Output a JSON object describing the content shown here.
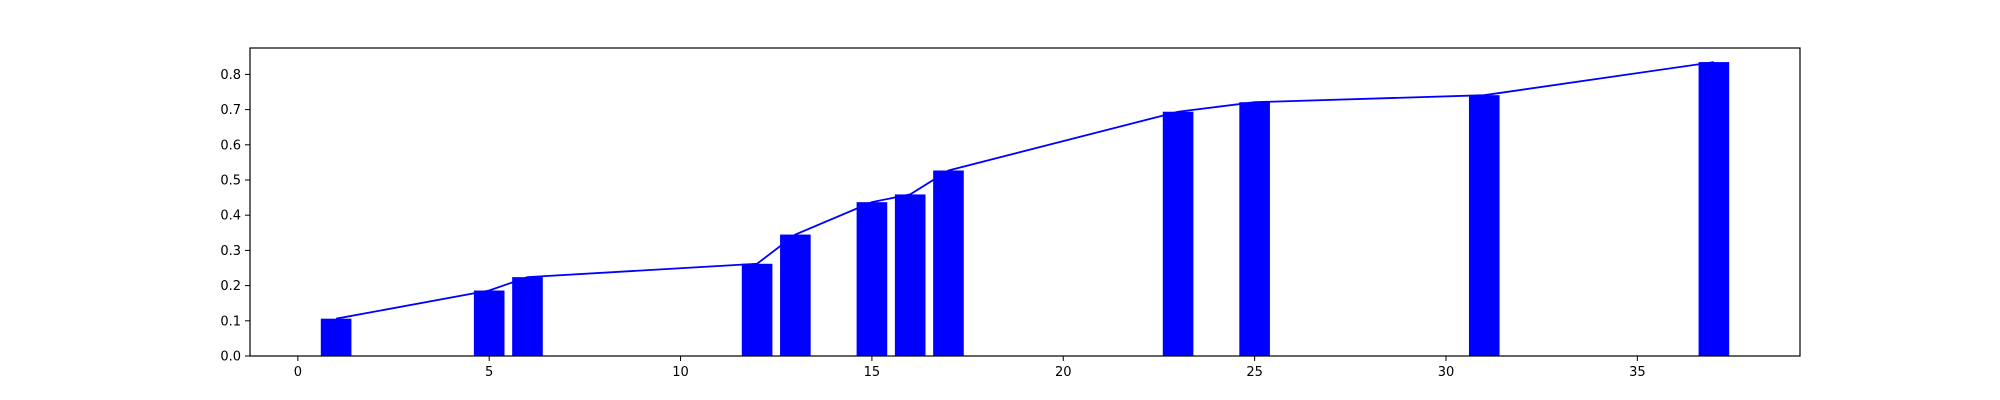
{
  "chart_data": {
    "type": "bar",
    "title": "",
    "xlabel": "",
    "ylabel": "",
    "xlim": [
      -1.25,
      39.25
    ],
    "ylim": [
      0,
      0.875
    ],
    "grid": false,
    "bar_color": "#0000ff",
    "line_color": "#0000ff",
    "x_ticks": [
      0,
      5,
      10,
      15,
      20,
      25,
      30,
      35
    ],
    "y_ticks": [
      0.0,
      0.1,
      0.2,
      0.3,
      0.4,
      0.5,
      0.6,
      0.7,
      0.8
    ],
    "x_tick_labels": [
      "0",
      "5",
      "10",
      "15",
      "20",
      "25",
      "30",
      "35"
    ],
    "y_tick_labels": [
      "0.0",
      "0.1",
      "0.2",
      "0.3",
      "0.4",
      "0.5",
      "0.6",
      "0.7",
      "0.8"
    ],
    "bar_width": 0.8,
    "x": [
      1,
      5,
      6,
      12,
      13,
      15,
      16,
      17,
      23,
      25,
      31,
      37
    ],
    "values": [
      0.106,
      0.186,
      0.224,
      0.262,
      0.345,
      0.437,
      0.459,
      0.527,
      0.694,
      0.721,
      0.741,
      0.835
    ],
    "line": {
      "x": [
        1,
        5,
        6,
        12,
        13,
        15,
        16,
        17,
        23,
        25,
        31,
        37
      ],
      "values": [
        0.106,
        0.186,
        0.224,
        0.262,
        0.345,
        0.437,
        0.459,
        0.527,
        0.694,
        0.721,
        0.741,
        0.835
      ]
    }
  }
}
